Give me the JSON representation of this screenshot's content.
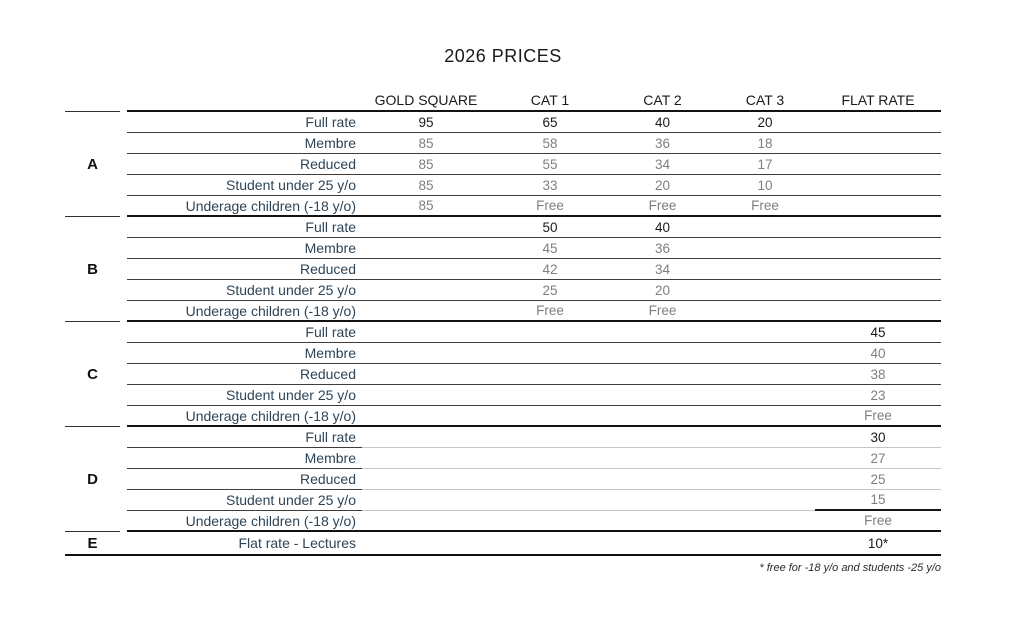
{
  "title": "2026 PRICES",
  "footnote": "* free for -18 y/o and students -25 y/o",
  "colors": {
    "label_navy": "#2e4557",
    "value_gray": "#7f7f7f",
    "text_black": "#1a1a1a",
    "grid_dark": "#3d3d3d",
    "grid_light": "#c6c6c6"
  },
  "table": {
    "column_headers": [
      "GOLD SQUARE",
      "CAT 1",
      "CAT 2",
      "CAT 3",
      "FLAT RATE"
    ],
    "sections": [
      {
        "letter": "A",
        "rows": [
          {
            "label": "Full rate",
            "emphasis": true,
            "values": [
              "95",
              "65",
              "40",
              "20",
              ""
            ]
          },
          {
            "label": "Membre",
            "values": [
              "85",
              "58",
              "36",
              "18",
              ""
            ]
          },
          {
            "label": "Reduced",
            "values": [
              "85",
              "55",
              "34",
              "17",
              ""
            ]
          },
          {
            "label": "Student under 25 y/o",
            "values": [
              "85",
              "33",
              "20",
              "10",
              ""
            ]
          },
          {
            "label": "Underage children (-18 y/o)",
            "values": [
              "85",
              "Free",
              "Free",
              "Free",
              ""
            ]
          }
        ]
      },
      {
        "letter": "B",
        "rows": [
          {
            "label": "Full rate",
            "emphasis": true,
            "values": [
              "",
              "50",
              "40",
              "",
              ""
            ]
          },
          {
            "label": "Membre",
            "values": [
              "",
              "45",
              "36",
              "",
              ""
            ]
          },
          {
            "label": "Reduced",
            "values": [
              "",
              "42",
              "34",
              "",
              ""
            ]
          },
          {
            "label": "Student under 25 y/o",
            "values": [
              "",
              "25",
              "20",
              "",
              ""
            ]
          },
          {
            "label": "Underage children (-18 y/o)",
            "values": [
              "",
              "Free",
              "Free",
              "",
              ""
            ]
          }
        ]
      },
      {
        "letter": "C",
        "rows": [
          {
            "label": "Full rate",
            "emphasis": true,
            "values": [
              "",
              "",
              "",
              "",
              "45"
            ]
          },
          {
            "label": "Membre",
            "values": [
              "",
              "",
              "",
              "",
              "40"
            ]
          },
          {
            "label": "Reduced",
            "values": [
              "",
              "",
              "",
              "",
              "38"
            ]
          },
          {
            "label": "Student under 25 y/o",
            "values": [
              "",
              "",
              "",
              "",
              "23"
            ]
          },
          {
            "label": "Underage children (-18 y/o)",
            "values": [
              "",
              "",
              "",
              "",
              "Free"
            ]
          }
        ]
      },
      {
        "letter": "D",
        "light_grid": true,
        "rows": [
          {
            "label": "Full rate",
            "emphasis": true,
            "values": [
              "",
              "",
              "",
              "",
              "30"
            ]
          },
          {
            "label": "Membre",
            "values": [
              "",
              "",
              "",
              "",
              "27"
            ]
          },
          {
            "label": "Reduced",
            "values": [
              "",
              "",
              "",
              "",
              "25"
            ]
          },
          {
            "label": "Student under 25 y/o",
            "values": [
              "",
              "",
              "",
              "",
              "15"
            ]
          },
          {
            "label": "Underage children (-18 y/o)",
            "values": [
              "",
              "",
              "",
              "",
              "Free"
            ]
          }
        ]
      },
      {
        "letter": "E",
        "rows": [
          {
            "label": "Flat rate - Lectures",
            "emphasis": true,
            "values": [
              "",
              "",
              "",
              "",
              "10*"
            ]
          }
        ]
      }
    ]
  }
}
